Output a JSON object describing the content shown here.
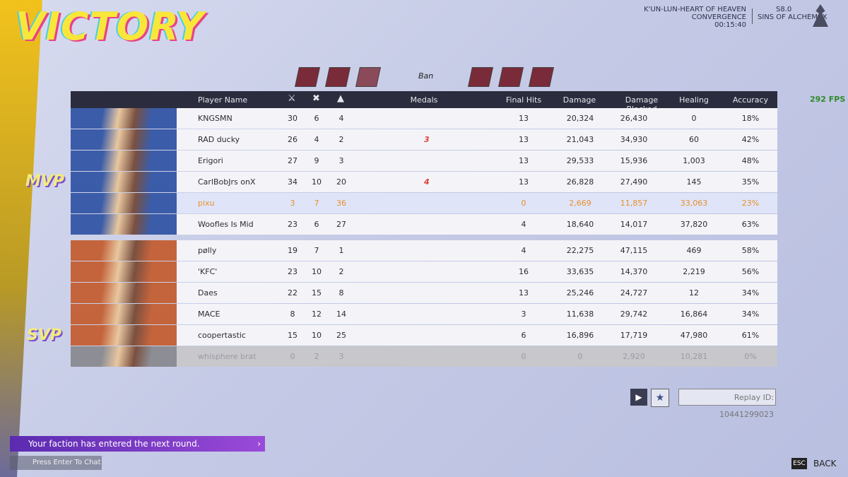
{
  "header": {
    "title": "VICTORY",
    "map": "K'UN-LUN-HEART OF HEAVEN",
    "mode": "CONVERGENCE",
    "time": "00:15:40",
    "season": "S8.0",
    "season_name": "SINS OF ALCHEMAX"
  },
  "ban_label": "Ban",
  "fps": "292 FPS",
  "columns": {
    "player": "Player Name",
    "medals": "Medals",
    "final_hits": "Final Hits",
    "damage": "Damage",
    "blocked": "Damage Blocked",
    "healing": "Healing",
    "accuracy": "Accuracy"
  },
  "badges": {
    "mvp": "MVP",
    "svp": "SVP"
  },
  "teams": [
    {
      "color": "#3b5ca8",
      "rows": [
        {
          "name": "KNGSMN",
          "kills": 30,
          "deaths": 6,
          "assists": 4,
          "final_hits": 13,
          "damage": "20,324",
          "damage_blocked": "26,430",
          "healing": "0",
          "accuracy": "18%"
        },
        {
          "name": "RAD ducky",
          "kills": 26,
          "deaths": 4,
          "assists": 2,
          "medal": "3",
          "final_hits": 13,
          "damage": "21,043",
          "damage_blocked": "34,930",
          "healing": "60",
          "accuracy": "42%"
        },
        {
          "name": "Erigori",
          "kills": 27,
          "deaths": 9,
          "assists": 3,
          "final_hits": 13,
          "damage": "29,533",
          "damage_blocked": "15,936",
          "healing": "1,003",
          "accuracy": "48%"
        },
        {
          "name": "CarlBobJrs onX",
          "kills": 34,
          "deaths": 10,
          "assists": 20,
          "medal": "4",
          "final_hits": 13,
          "damage": "26,828",
          "damage_blocked": "27,490",
          "healing": "145",
          "accuracy": "35%"
        },
        {
          "name": "pixu",
          "kills": 3,
          "deaths": 7,
          "assists": 36,
          "final_hits": 0,
          "damage": "2,669",
          "damage_blocked": "11,857",
          "healing": "33,063",
          "accuracy": "23%",
          "self": true
        },
        {
          "name": "Woofles Is Mid",
          "kills": 23,
          "deaths": 6,
          "assists": 27,
          "final_hits": 4,
          "damage": "18,640",
          "damage_blocked": "14,017",
          "healing": "37,820",
          "accuracy": "63%"
        }
      ]
    },
    {
      "color": "#c4643c",
      "rows": [
        {
          "name": "pølly",
          "kills": 19,
          "deaths": 7,
          "assists": 1,
          "final_hits": 4,
          "damage": "22,275",
          "damage_blocked": "47,115",
          "healing": "469",
          "accuracy": "58%"
        },
        {
          "name": "'KFC'",
          "kills": 23,
          "deaths": 10,
          "assists": 2,
          "final_hits": 16,
          "damage": "33,635",
          "damage_blocked": "14,370",
          "healing": "2,219",
          "accuracy": "56%"
        },
        {
          "name": "Daes",
          "kills": 22,
          "deaths": 15,
          "assists": 8,
          "final_hits": 13,
          "damage": "25,246",
          "damage_blocked": "24,727",
          "healing": "12",
          "accuracy": "34%"
        },
        {
          "name": "MACE",
          "kills": 8,
          "deaths": 12,
          "assists": 14,
          "final_hits": 3,
          "damage": "11,638",
          "damage_blocked": "29,742",
          "healing": "16,864",
          "accuracy": "34%"
        },
        {
          "name": "coopertastic",
          "kills": 15,
          "deaths": 10,
          "assists": 25,
          "final_hits": 6,
          "damage": "16,896",
          "damage_blocked": "17,719",
          "healing": "47,980",
          "accuracy": "61%"
        },
        {
          "name": "whisphere brat",
          "kills": 0,
          "deaths": 2,
          "assists": 3,
          "final_hits": 0,
          "damage": "0",
          "damage_blocked": "2,920",
          "healing": "10,281",
          "accuracy": "0%",
          "disconnected": true
        }
      ]
    }
  ],
  "replay": "Replay ID: 10441299023",
  "notification": "Your faction has entered the next round.",
  "chat": "Press Enter To Chat",
  "esc": {
    "key": "ESC",
    "label": "BACK"
  }
}
